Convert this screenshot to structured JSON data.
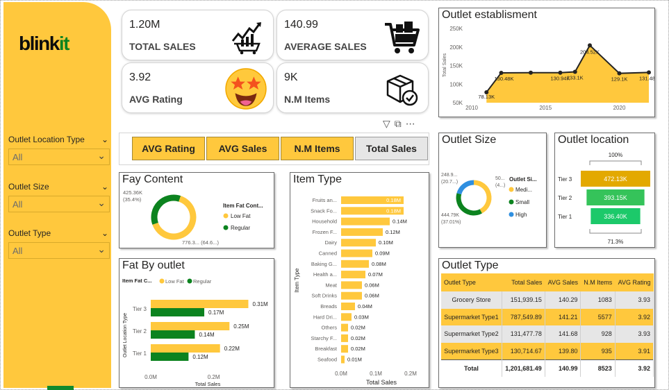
{
  "brand": {
    "logo_main": "blink",
    "logo_accent": "it"
  },
  "slicers": [
    {
      "label": "Outlet Location Type",
      "value": "All"
    },
    {
      "label": "Outlet Size",
      "value": "All"
    },
    {
      "label": "Outlet Type",
      "value": "All"
    }
  ],
  "kpis": [
    {
      "value": "1.20M",
      "label": "TOTAL SALES",
      "icon": "sales-growth-cart-icon"
    },
    {
      "value": "140.99",
      "label": "AVERAGE SALES",
      "icon": "shopping-cart-icon"
    },
    {
      "value": "3.92",
      "label": "AVG Rating",
      "icon": "star-struck-emoji-icon"
    },
    {
      "value": "9K",
      "label": "N.M Items",
      "icon": "package-check-icon"
    }
  ],
  "buttons": [
    {
      "label": "AVG Rating",
      "active": false
    },
    {
      "label": "AVG Sales",
      "active": false
    },
    {
      "label": "N.M Items",
      "active": false
    },
    {
      "label": "Total Sales",
      "active": true
    }
  ],
  "colors": {
    "accent": "#FFC83D",
    "green": "#0C831F",
    "tier3": "#E3A900",
    "tier2": "#35C35A",
    "tier1": "#1CC96A",
    "donut_blue": "#2F8FE0"
  },
  "panels": {
    "outlet_establishment": "Outlet establisment",
    "fat_content": "Fay Content",
    "item_type": "Item Type",
    "outlet_size": "Outlet Size",
    "outlet_location": "Outlet location",
    "fat_by_outlet": "Fat By outlet",
    "outlet_type": "Outlet Type"
  },
  "chart_data": [
    {
      "id": "outlet-establishment",
      "type": "area",
      "title": "Outlet establisment",
      "ylabel": "Total Sales",
      "ylim": [
        50,
        250
      ],
      "yticks": [
        "50K",
        "100K",
        "150K",
        "200K",
        "250K"
      ],
      "xticks": [
        "2010",
        "2015",
        "2020"
      ],
      "x": [
        2011,
        2012,
        2014,
        2016,
        2017,
        2018,
        2020,
        2022
      ],
      "values": [
        78.13,
        130.48,
        130.94,
        130.94,
        133.1,
        204.52,
        129.1,
        131.48
      ],
      "labels": [
        "78.13K",
        "130.48K",
        "",
        "130.94K",
        "133.1K",
        "204.52K",
        "129.1K",
        "131.48K"
      ]
    },
    {
      "id": "fat-content",
      "type": "pie",
      "title": "Fay Content",
      "legend_title": "Item Fat Cont...",
      "slices": [
        {
          "name": "Low Fat",
          "value": 776.3,
          "label": "776.3... (64.6...)"
        },
        {
          "name": "Regular",
          "value": 425.36,
          "label": "425.36K (35.4%)"
        }
      ]
    },
    {
      "id": "item-type",
      "type": "bar",
      "title": "Item Type",
      "ylabel": "Item Type",
      "xlabel": "Total Sales",
      "xlim": [
        0,
        0.2
      ],
      "xticks": [
        "0.0M",
        "0.1M",
        "0.2M"
      ],
      "categories": [
        "Fruits an...",
        "Snack Fo...",
        "Household",
        "Frozen F...",
        "Dairy",
        "Canned",
        "Baking G...",
        "Health a...",
        "Meat",
        "Soft Drinks",
        "Breads",
        "Hard Dri...",
        "Others",
        "Starchy F...",
        "Breakfast",
        "Seafood"
      ],
      "values": [
        0.18,
        0.18,
        0.14,
        0.12,
        0.1,
        0.09,
        0.08,
        0.07,
        0.06,
        0.06,
        0.04,
        0.03,
        0.02,
        0.02,
        0.02,
        0.01
      ],
      "labels": [
        "0.18M",
        "0.18M",
        "0.14M",
        "0.12M",
        "0.10M",
        "0.09M",
        "0.08M",
        "0.07M",
        "0.06M",
        "0.06M",
        "0.04M",
        "0.03M",
        "0.02M",
        "0.02M",
        "0.02M",
        "0.01M"
      ]
    },
    {
      "id": "outlet-size",
      "type": "pie",
      "title": "Outlet Size",
      "legend_title": "Outlet Si...",
      "slices": [
        {
          "name": "Medi...",
          "value": 507.9,
          "label": "50... (4...)"
        },
        {
          "name": "Small",
          "value": 444.79,
          "label": "444.79K (37.01%)"
        },
        {
          "name": "High",
          "value": 248.99,
          "label": "248.9... (20.7...)"
        }
      ]
    },
    {
      "id": "outlet-location",
      "type": "bar",
      "title": "Outlet location",
      "top_label": "100%",
      "bottom_label": "71.3%",
      "categories": [
        "Tier 3",
        "Tier 2",
        "Tier 1"
      ],
      "values": [
        472.13,
        393.15,
        336.4
      ],
      "labels": [
        "472.13K",
        "393.15K",
        "336.40K"
      ]
    },
    {
      "id": "fat-by-outlet",
      "type": "bar",
      "title": "Fat By outlet",
      "legend_title": "Item Fat C...",
      "ylabel": "Outlet Location Type",
      "xlabel": "Total Sales",
      "xlim": [
        0,
        0.32
      ],
      "xticks": [
        "0.0M",
        "0.2M"
      ],
      "categories": [
        "Tier 3",
        "Tier 2",
        "Tier 1"
      ],
      "series": [
        {
          "name": "Low Fat",
          "values": [
            0.31,
            0.25,
            0.22
          ],
          "labels": [
            "0.31M",
            "0.25M",
            "0.22M"
          ]
        },
        {
          "name": "Regular",
          "values": [
            0.17,
            0.14,
            0.12
          ],
          "labels": [
            "0.17M",
            "0.14M",
            "0.12M"
          ]
        }
      ]
    },
    {
      "id": "outlet-type-table",
      "type": "table",
      "title": "Outlet Type",
      "columns": [
        "Outlet Type",
        "Total Sales",
        "AVG Sales",
        "N.M Items",
        "AVG Rating"
      ],
      "rows": [
        [
          "Grocery Store",
          "151,939.15",
          "140.29",
          "1083",
          "3.93"
        ],
        [
          "Supermarket Type1",
          "787,549.89",
          "141.21",
          "5577",
          "3.92"
        ],
        [
          "Supermarket Type2",
          "131,477.78",
          "141.68",
          "928",
          "3.93"
        ],
        [
          "Supermarket Type3",
          "130,714.67",
          "139.80",
          "935",
          "3.91"
        ]
      ],
      "total": [
        "Total",
        "1,201,681.49",
        "140.99",
        "8523",
        "3.92"
      ]
    }
  ]
}
